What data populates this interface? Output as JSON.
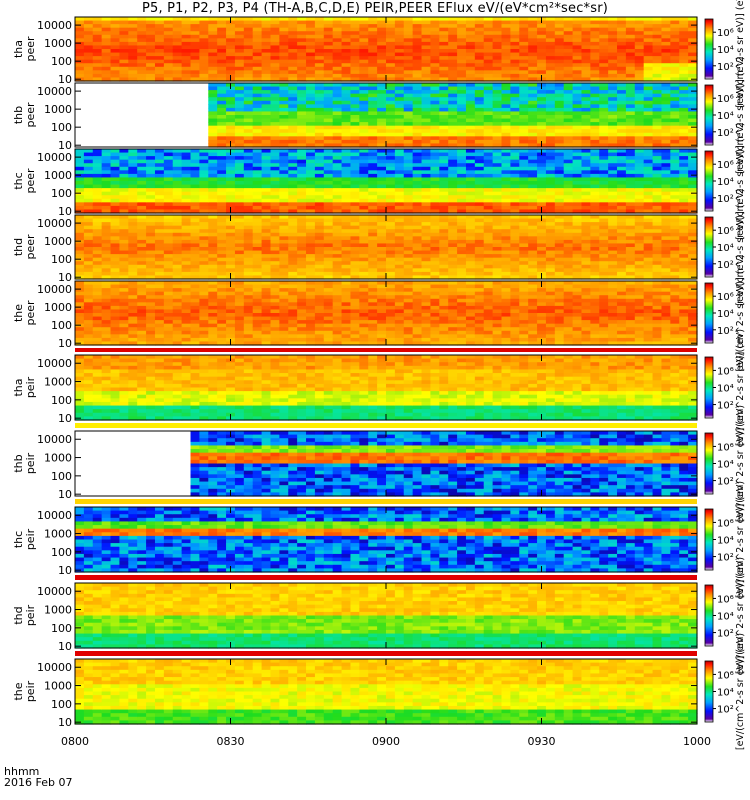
{
  "chart_data": {
    "type": "heatmap",
    "title": "P5, P1, P2, P3, P4 (TH-A,B,C,D,E) PEIR,PEER EFlux eV/(eV*cm²*sec*sr)",
    "x_ticks": [
      "0800",
      "0830",
      "0900",
      "0930",
      "1000"
    ],
    "x_caption_line1": "hhmm",
    "x_caption_line2": "2016 Feb 07",
    "y_ticks": [
      "10000",
      "1000",
      "100",
      "10"
    ],
    "y_scale": "log",
    "colorbar_ticks": [
      "10⁶",
      "10⁴",
      "10²"
    ],
    "colorbar_units": "[eV/(cm^2-s sr eV)] (eV)",
    "panels": [
      {
        "probe": "tha",
        "species": "peer",
        "label": "tha peer"
      },
      {
        "probe": "thb",
        "species": "peer",
        "label": "thb peer"
      },
      {
        "probe": "thc",
        "species": "peer",
        "label": "thc peer"
      },
      {
        "probe": "thd",
        "species": "peer",
        "label": "thd peer"
      },
      {
        "probe": "the",
        "species": "peer",
        "label": "the peer"
      },
      {
        "probe": "tha",
        "species": "peir",
        "label": "tha peir"
      },
      {
        "probe": "thb",
        "species": "peir",
        "label": "thb peir"
      },
      {
        "probe": "thc",
        "species": "peir",
        "label": "thc peir"
      },
      {
        "probe": "thd",
        "species": "peir",
        "label": "thd peir"
      },
      {
        "probe": "the",
        "species": "peir",
        "label": "the peir"
      }
    ]
  }
}
